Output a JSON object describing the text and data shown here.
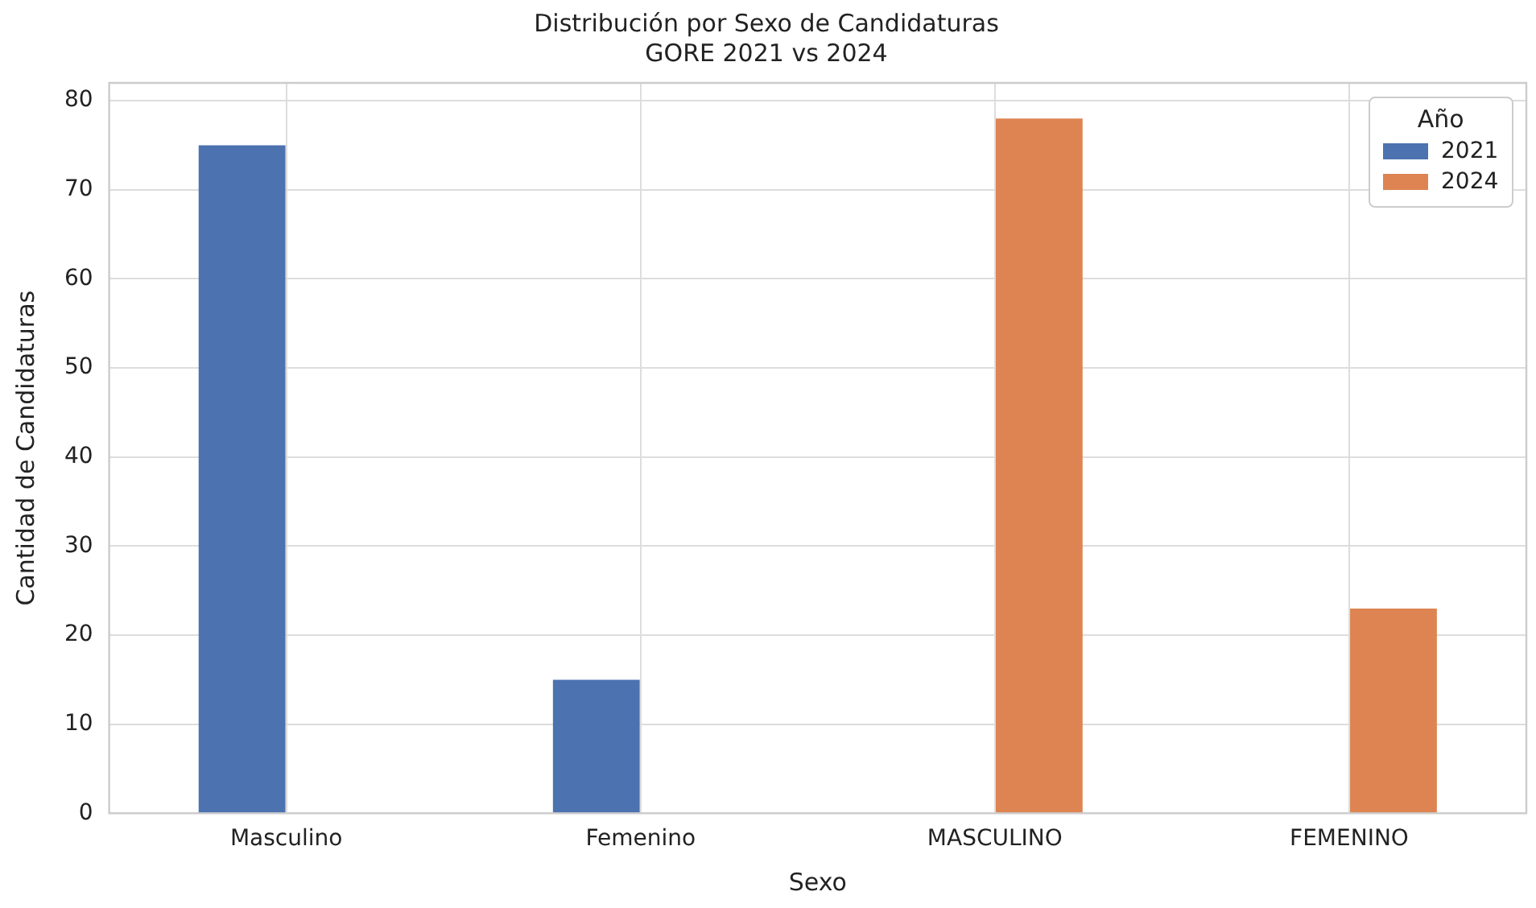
{
  "chart_data": {
    "type": "bar",
    "title": "Distribución por Sexo de Candidaturas",
    "subtitle": "GORE 2021 vs 2024",
    "xlabel": "Sexo",
    "ylabel": "Cantidad de Candidaturas",
    "legend_title": "Año",
    "categories": [
      "Masculino",
      "Femenino",
      "MASCULINO",
      "FEMENINO"
    ],
    "series": [
      {
        "name": "2021",
        "color": "#4c72b0",
        "values": [
          75,
          15,
          null,
          null
        ]
      },
      {
        "name": "2024",
        "color": "#dd8452",
        "values": [
          null,
          null,
          78,
          23
        ]
      }
    ],
    "ylim": [
      0,
      82
    ],
    "yticks": [
      0,
      10,
      20,
      30,
      40,
      50,
      60,
      70,
      80
    ],
    "grid": true,
    "legend": "top right"
  }
}
